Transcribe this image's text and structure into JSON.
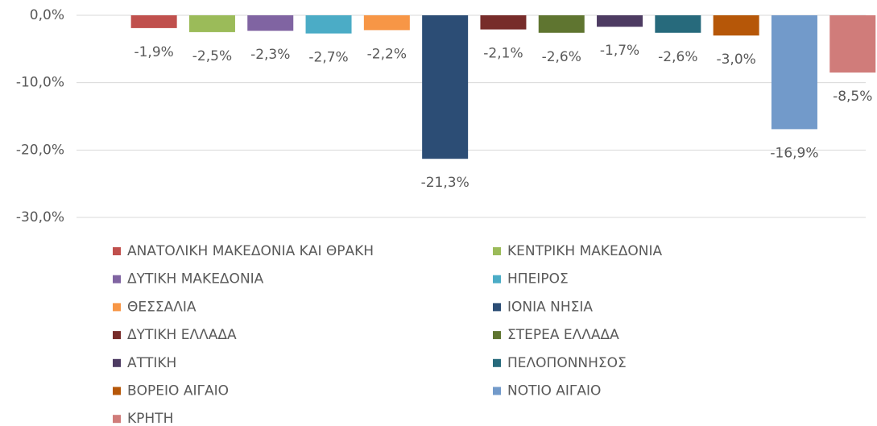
{
  "chart_data": {
    "type": "bar",
    "ylim": [
      -30,
      0
    ],
    "yticks": [
      {
        "value": 0,
        "label": "0,0%"
      },
      {
        "value": -10,
        "label": "-10,0%"
      },
      {
        "value": -20,
        "label": "-20,0%"
      },
      {
        "value": -30,
        "label": "-30,0%"
      }
    ],
    "grid": true,
    "legend": "bottom",
    "series": [
      {
        "name": "ΑΝΑΤΟΛΙΚΗ ΜΑΚΕΔΟΝΙΑ ΚΑΙ ΘΡΑΚΗ",
        "color": "#c0504d",
        "values": [
          -1.9
        ],
        "value_labels": [
          "-1,9%"
        ]
      },
      {
        "name": "ΚΕΝΤΡΙΚΗ ΜΑΚΕΔΟΝΙΑ",
        "color": "#9bbb59",
        "values": [
          -2.5
        ],
        "value_labels": [
          "-2,5%"
        ]
      },
      {
        "name": "ΔΥΤΙΚΗ ΜΑΚΕΔΟΝΙΑ",
        "color": "#8064a2",
        "values": [
          -2.3
        ],
        "value_labels": [
          "-2,3%"
        ]
      },
      {
        "name": "ΗΠΕΙΡΟΣ",
        "color": "#4bacc6",
        "values": [
          -2.7
        ],
        "value_labels": [
          "-2,7%"
        ]
      },
      {
        "name": "ΘΕΣΣΑΛΙΑ",
        "color": "#f79646",
        "values": [
          -2.2
        ],
        "value_labels": [
          "-2,2%"
        ]
      },
      {
        "name": "ΙΟΝΙΑ ΝΗΣΙΑ",
        "color": "#2c4d75",
        "values": [
          -21.3
        ],
        "value_labels": [
          "-21,3%"
        ]
      },
      {
        "name": "ΔΥΤΙΚΗ ΕΛΛΑΔΑ",
        "color": "#772c2a",
        "values": [
          -2.1
        ],
        "value_labels": [
          "-2,1%"
        ]
      },
      {
        "name": "ΣΤΕΡΕΑ ΕΛΛΑΔΑ",
        "color": "#5f7530",
        "values": [
          -2.6
        ],
        "value_labels": [
          "-2,6%"
        ]
      },
      {
        "name": "ΑΤΤΙΚΗ",
        "color": "#4d3b62",
        "values": [
          -1.7
        ],
        "value_labels": [
          "-1,7%"
        ]
      },
      {
        "name": "ΠΕΛΟΠΟΝΝΗΣΟΣ",
        "color": "#276a7c",
        "values": [
          -2.6
        ],
        "value_labels": [
          "-2,6%"
        ]
      },
      {
        "name": "ΒΟΡΕΙΟ ΑΙΓΑΙΟ",
        "color": "#b65708",
        "values": [
          -3.0
        ],
        "value_labels": [
          "-3,0%"
        ]
      },
      {
        "name": "ΝΟΤΙΟ ΑΙΓΑΙΟ",
        "color": "#729aca",
        "values": [
          -16.9
        ],
        "value_labels": [
          "-16,9%"
        ]
      },
      {
        "name": "ΚΡΗΤΗ",
        "color": "#d07c7a",
        "values": [
          -8.5
        ],
        "value_labels": [
          "-8,5%"
        ]
      }
    ]
  }
}
